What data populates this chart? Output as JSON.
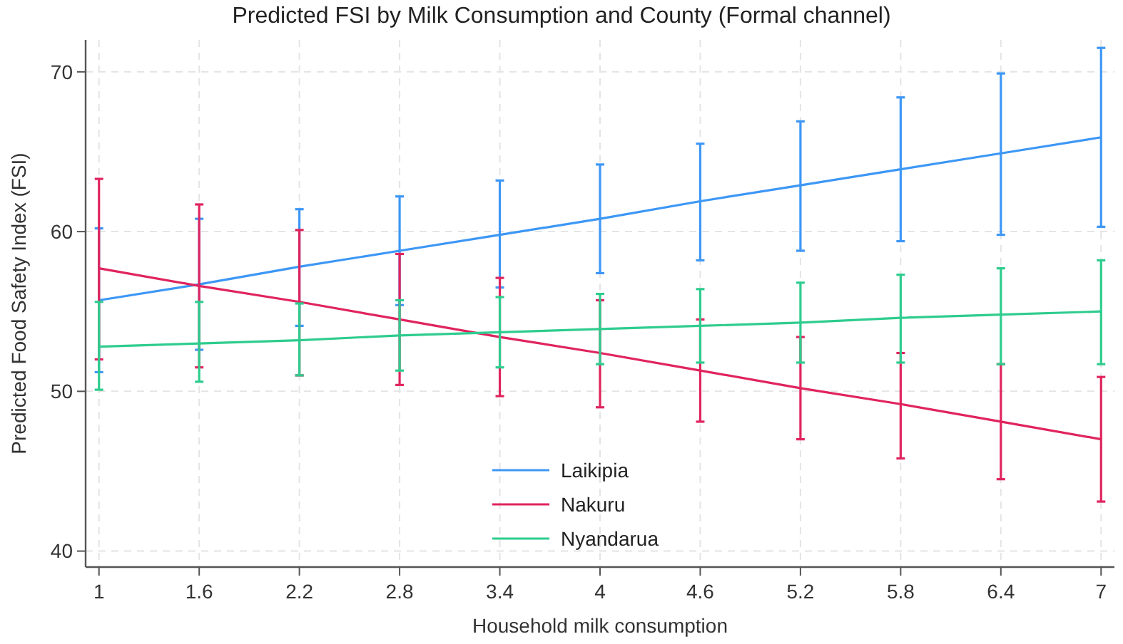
{
  "chart_data": {
    "type": "line",
    "title": "Predicted FSI by Milk Consumption and County (Formal channel)",
    "xlabel": "Household milk consumption",
    "ylabel": "Predicted Food Safety Index (FSI)",
    "x": [
      1,
      1.6,
      2.2,
      2.8,
      3.4,
      4,
      4.6,
      5.2,
      5.8,
      6.4,
      7
    ],
    "xlim": [
      0.92,
      7.08
    ],
    "xticks": [
      1,
      1.6,
      2.2,
      2.8,
      3.4,
      4,
      4.6,
      5.2,
      5.8,
      6.4,
      7
    ],
    "ylim": [
      39,
      72
    ],
    "yticks": [
      40,
      50,
      60,
      70
    ],
    "grid": true,
    "legend": "bottom",
    "marker": "none",
    "line_style": "solid",
    "series": [
      {
        "name": "Laikipia",
        "color": "#3d97f5",
        "values": [
          55.7,
          56.7,
          57.8,
          58.8,
          59.8,
          60.8,
          61.9,
          62.9,
          63.9,
          64.9,
          65.9
        ],
        "errors": [
          [
            51.2,
            60.2
          ],
          [
            52.6,
            60.8
          ],
          [
            54.1,
            61.4
          ],
          [
            55.4,
            62.2
          ],
          [
            56.5,
            63.2
          ],
          [
            57.4,
            64.2
          ],
          [
            58.2,
            65.5
          ],
          [
            58.8,
            66.9
          ],
          [
            59.4,
            68.4
          ],
          [
            59.8,
            69.9
          ],
          [
            60.3,
            71.5
          ]
        ]
      },
      {
        "name": "Nakuru",
        "color": "#e0245e",
        "values": [
          57.7,
          56.6,
          55.6,
          54.5,
          53.4,
          52.4,
          51.3,
          50.2,
          49.2,
          48.1,
          47.0
        ],
        "errors": [
          [
            52.0,
            63.3
          ],
          [
            51.5,
            61.7
          ],
          [
            51.0,
            60.1
          ],
          [
            50.4,
            58.6
          ],
          [
            49.7,
            57.1
          ],
          [
            49.0,
            55.7
          ],
          [
            48.1,
            54.5
          ],
          [
            47.0,
            53.4
          ],
          [
            45.8,
            52.4
          ],
          [
            44.5,
            51.7
          ],
          [
            43.1,
            50.9
          ]
        ]
      },
      {
        "name": "Nyandarua",
        "color": "#2ecc8e",
        "values": [
          52.8,
          53.0,
          53.2,
          53.5,
          53.7,
          53.9,
          54.1,
          54.3,
          54.6,
          54.8,
          55.0
        ],
        "errors": [
          [
            50.1,
            55.6
          ],
          [
            50.6,
            55.6
          ],
          [
            51.0,
            55.5
          ],
          [
            51.3,
            55.7
          ],
          [
            51.5,
            55.9
          ],
          [
            51.7,
            56.1
          ],
          [
            51.8,
            56.4
          ],
          [
            51.8,
            56.8
          ],
          [
            51.8,
            57.3
          ],
          [
            51.7,
            57.7
          ],
          [
            51.7,
            58.2
          ]
        ]
      }
    ]
  }
}
